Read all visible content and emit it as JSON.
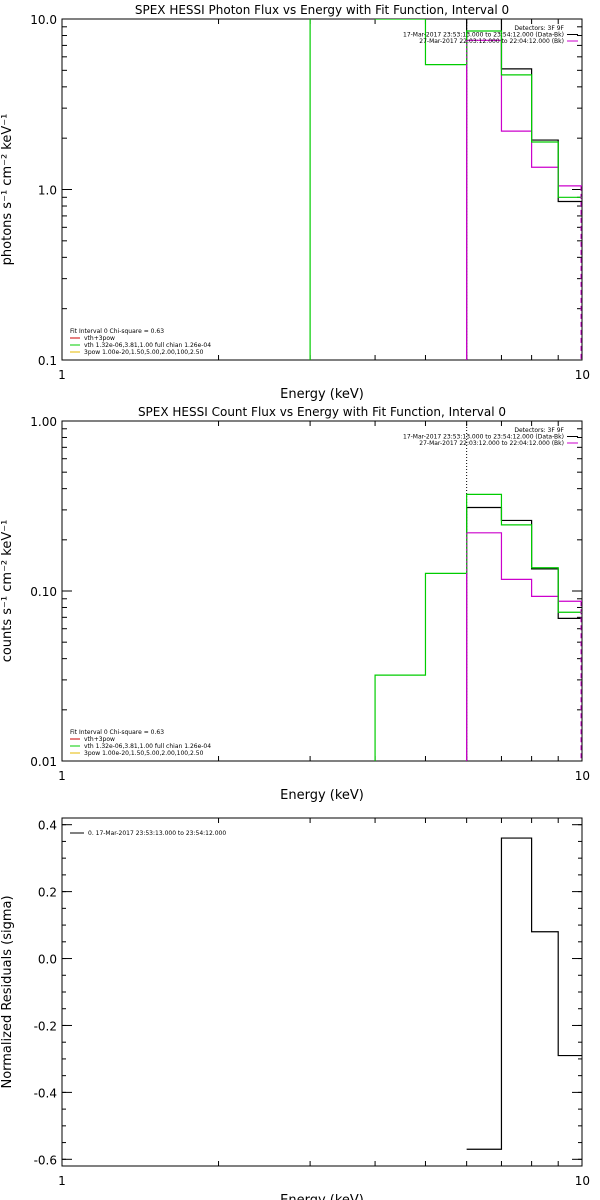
{
  "chart_data": [
    {
      "type": "line",
      "title": "SPEX HESSI Photon Flux vs Energy with Fit Function, Interval 0",
      "xlabel": "Energy (keV)",
      "ylabel": "photons s⁻¹ cm⁻² keV⁻¹",
      "xscale": "log",
      "yscale": "log",
      "xlim": [
        1,
        10
      ],
      "ylim": [
        0.1,
        10
      ],
      "x_ticks": [
        {
          "value": 1,
          "label": "1"
        },
        {
          "value": 10,
          "label": "10"
        }
      ],
      "y_ticks": [
        {
          "value": 0.1,
          "label": "0.1"
        },
        {
          "value": 1,
          "label": "1.0"
        },
        {
          "value": 10,
          "label": "10.0"
        }
      ],
      "vline": 6,
      "info_lines": [
        "Detectors: 3F 9F",
        "17-Mar-2017 23:53:13.000 to 23:54:12.000 (Data-Bk)",
        "27-Mar-2017 22:03:12.000 to 22:04:12.000 (Bk)"
      ],
      "info_colors": [
        "#000000",
        "#000000",
        "#cc00cc"
      ],
      "fit_lines": [
        "Fit Interval 0   Chi-square = 0.63",
        "vth+3pow",
        "vth 1.32e-06,3.81,1.00  full chian 1.26e-04",
        "3pow 1.00e-20,1.50,5.00,2.00,100,2.50"
      ],
      "fit_colors": [
        "#000000",
        "#cc0000",
        "#00cc00",
        "#e6b800"
      ],
      "series": [
        {
          "name": "Data-Bk",
          "color": "#000000",
          "edges": [
            6,
            7,
            8,
            9,
            10
          ],
          "values": [
            10.2,
            5.1,
            1.95,
            0.85
          ]
        },
        {
          "name": "Bk",
          "color": "#cc00cc",
          "edges": [
            6,
            7,
            8,
            9,
            10
          ],
          "values": [
            7.5,
            2.2,
            1.35,
            1.05
          ]
        },
        {
          "name": "vth+3pow",
          "color": "#00cc00",
          "edges": [
            3,
            4,
            5,
            6,
            7,
            8,
            9,
            10
          ],
          "values": [
            30,
            10,
            5.4,
            8.5,
            4.7,
            1.9,
            0.9
          ]
        }
      ]
    },
    {
      "type": "line",
      "title": "SPEX HESSI Count Flux vs Energy with Fit Function, Interval 0",
      "xlabel": "Energy (keV)",
      "ylabel": "counts s⁻¹ cm⁻² keV⁻¹",
      "xscale": "log",
      "yscale": "log",
      "xlim": [
        1,
        10
      ],
      "ylim": [
        0.01,
        1
      ],
      "x_ticks": [
        {
          "value": 1,
          "label": "1"
        },
        {
          "value": 10,
          "label": "10"
        }
      ],
      "y_ticks": [
        {
          "value": 0.01,
          "label": "0.01"
        },
        {
          "value": 0.1,
          "label": "0.10"
        },
        {
          "value": 1,
          "label": "1.00"
        }
      ],
      "vline": 6,
      "info_lines": [
        "Detectors: 3F 9F",
        "17-Mar-2017 23:53:13.000 to 23:54:12.000 (Data-Bk)",
        "27-Mar-2017 22:03:12.000 to 22:04:12.000 (Bk)"
      ],
      "info_colors": [
        "#000000",
        "#000000",
        "#cc00cc"
      ],
      "fit_lines": [
        "Fit Interval 0   Chi-square = 0.63",
        "vth+3pow",
        "vth 1.32e-06,3.81,1.00  full chian 1.26e-04",
        "3pow 1.00e-20,1.50,5.00,2.00,100,2.50"
      ],
      "fit_colors": [
        "#000000",
        "#cc0000",
        "#00cc00",
        "#e6b800"
      ],
      "series": [
        {
          "name": "Data-Bk",
          "color": "#000000",
          "edges": [
            6,
            7,
            8,
            9,
            10
          ],
          "values": [
            0.31,
            0.26,
            0.135,
            0.069
          ]
        },
        {
          "name": "Bk",
          "color": "#cc00cc",
          "edges": [
            6,
            7,
            8,
            9,
            10
          ],
          "values": [
            0.22,
            0.117,
            0.093,
            0.087
          ]
        },
        {
          "name": "vth+3pow",
          "color": "#00cc00",
          "edges": [
            4,
            5,
            6,
            7,
            8,
            9,
            10
          ],
          "values": [
            0.032,
            0.127,
            0.37,
            0.245,
            0.137,
            0.075
          ]
        }
      ]
    },
    {
      "type": "line",
      "title": "",
      "xlabel": "Energy (keV)",
      "ylabel": "Normalized Residuals (sigma)",
      "xscale": "log",
      "yscale": "linear",
      "xlim": [
        1,
        10
      ],
      "ylim": [
        -0.62,
        0.42
      ],
      "x_ticks": [
        {
          "value": 1,
          "label": "1"
        },
        {
          "value": 10,
          "label": "10"
        }
      ],
      "y_ticks": [
        {
          "value": -0.6,
          "label": "-0.6"
        },
        {
          "value": -0.4,
          "label": "-0.4"
        },
        {
          "value": -0.2,
          "label": "-0.2"
        },
        {
          "value": 0,
          "label": "0.0"
        },
        {
          "value": 0.2,
          "label": "0.2"
        },
        {
          "value": 0.4,
          "label": "0.4"
        }
      ],
      "legend_entry": "0. 17-Mar-2017 23:53:13.000 to 23:54:12.000",
      "series": [
        {
          "name": "0. 17-Mar-2017 23:53:13.000 to 23:54:12.000",
          "color": "#000000",
          "edges": [
            6,
            7,
            8,
            9,
            10
          ],
          "values": [
            -0.57,
            0.36,
            0.08,
            -0.29
          ]
        }
      ]
    }
  ]
}
